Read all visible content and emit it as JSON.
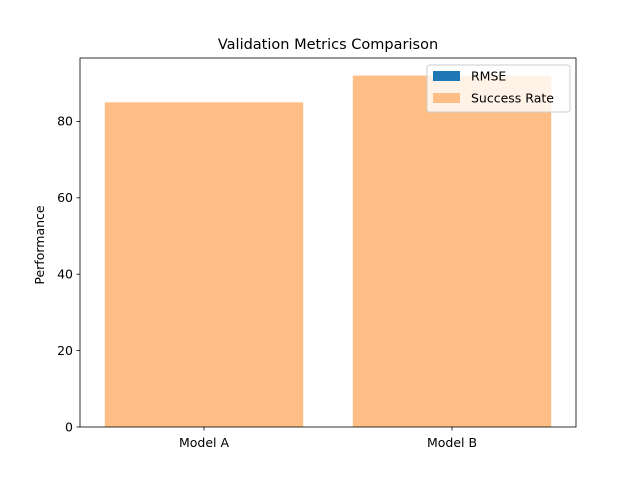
{
  "chart_data": {
    "type": "bar",
    "title": "Validation Metrics Comparison",
    "xlabel": "",
    "ylabel": "Performance",
    "categories": [
      "Model A",
      "Model B"
    ],
    "series": [
      {
        "name": "RMSE",
        "values": [
          0.12,
          0.08
        ],
        "color": "#1f77b4"
      },
      {
        "name": "Success Rate",
        "values": [
          85,
          92
        ],
        "color": "#ffbe86"
      }
    ],
    "ylim": [
      0,
      96.6
    ],
    "yticks": [
      0,
      20,
      40,
      60,
      80
    ],
    "grid": false,
    "legend_position": "top-right"
  }
}
